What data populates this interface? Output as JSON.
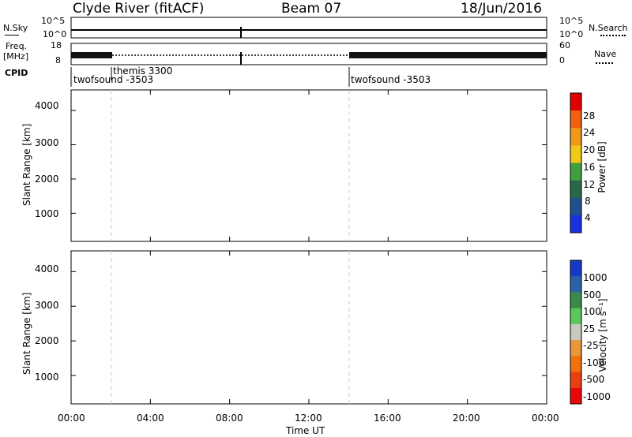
{
  "header": {
    "station": "Clyde River (fitACF)",
    "beam": "Beam 07",
    "date": "18/Jun/2016"
  },
  "panels": {
    "nsky_label": "N.Sky",
    "nsky_ticks": [
      "10^5",
      "10^0"
    ],
    "nsearch_label": "N.Search",
    "nsearch_ticks": [
      "10^5",
      "10^0"
    ],
    "freq_label_line1": "Freq.",
    "freq_label_line2": "[MHz]",
    "freq_ticks": [
      "18",
      "8"
    ],
    "nave_label": "Nave",
    "nave_ticks": [
      "60",
      "0"
    ],
    "cpid_label": "CPID",
    "cpid_entries": [
      "twofsound -3503",
      "themis 3300",
      "twofsound -3503"
    ]
  },
  "power_colorbar": {
    "label": "Power [dB]",
    "ticks": [
      "28",
      "24",
      "20",
      "16",
      "12",
      "8",
      "4"
    ],
    "colors": [
      "#e00000",
      "#f06010",
      "#f09818",
      "#f0c818",
      "#40a040",
      "#286848",
      "#205090",
      "#1830e0"
    ]
  },
  "velocity_colorbar": {
    "label": "Velocity [m s⁻¹]",
    "ticks": [
      "1000",
      "500",
      "100",
      "25",
      "-25",
      "-100",
      "-500",
      "-1000"
    ],
    "colors": [
      "#1838c8",
      "#2a62a8",
      "#3a8a4a",
      "#5ac85a",
      "#c8c8c0",
      "#e89838",
      "#f07010",
      "#e84010",
      "#e80808"
    ]
  },
  "chart_data": [
    {
      "type": "heatmap",
      "name": "power",
      "ylabel": "Slant Range [km]",
      "xlabel": "",
      "xlim": [
        0,
        24
      ],
      "ylim": [
        180,
        4600
      ],
      "yticks": [
        "4000",
        "3000",
        "2000",
        "1000"
      ],
      "ytick_values": [
        4000,
        3000,
        2000,
        1000
      ],
      "xtick_values": [
        0,
        4,
        8,
        12,
        16,
        20,
        24
      ],
      "grid": false,
      "scale": [
        0,
        32
      ]
    },
    {
      "type": "heatmap",
      "name": "velocity",
      "ylabel": "Slant Range [km]",
      "xlabel": "Time UT",
      "xlim": [
        0,
        24
      ],
      "ylim": [
        180,
        4600
      ],
      "yticks": [
        "4000",
        "3000",
        "2000",
        "1000"
      ],
      "ytick_values": [
        4000,
        3000,
        2000,
        1000
      ],
      "xticks": [
        "00:00",
        "04:00",
        "08:00",
        "12:00",
        "16:00",
        "20:00",
        "00:00"
      ],
      "xtick_values": [
        0,
        4,
        8,
        12,
        16,
        20,
        24
      ],
      "grid": false,
      "scale": [
        -1000,
        1000
      ]
    }
  ]
}
